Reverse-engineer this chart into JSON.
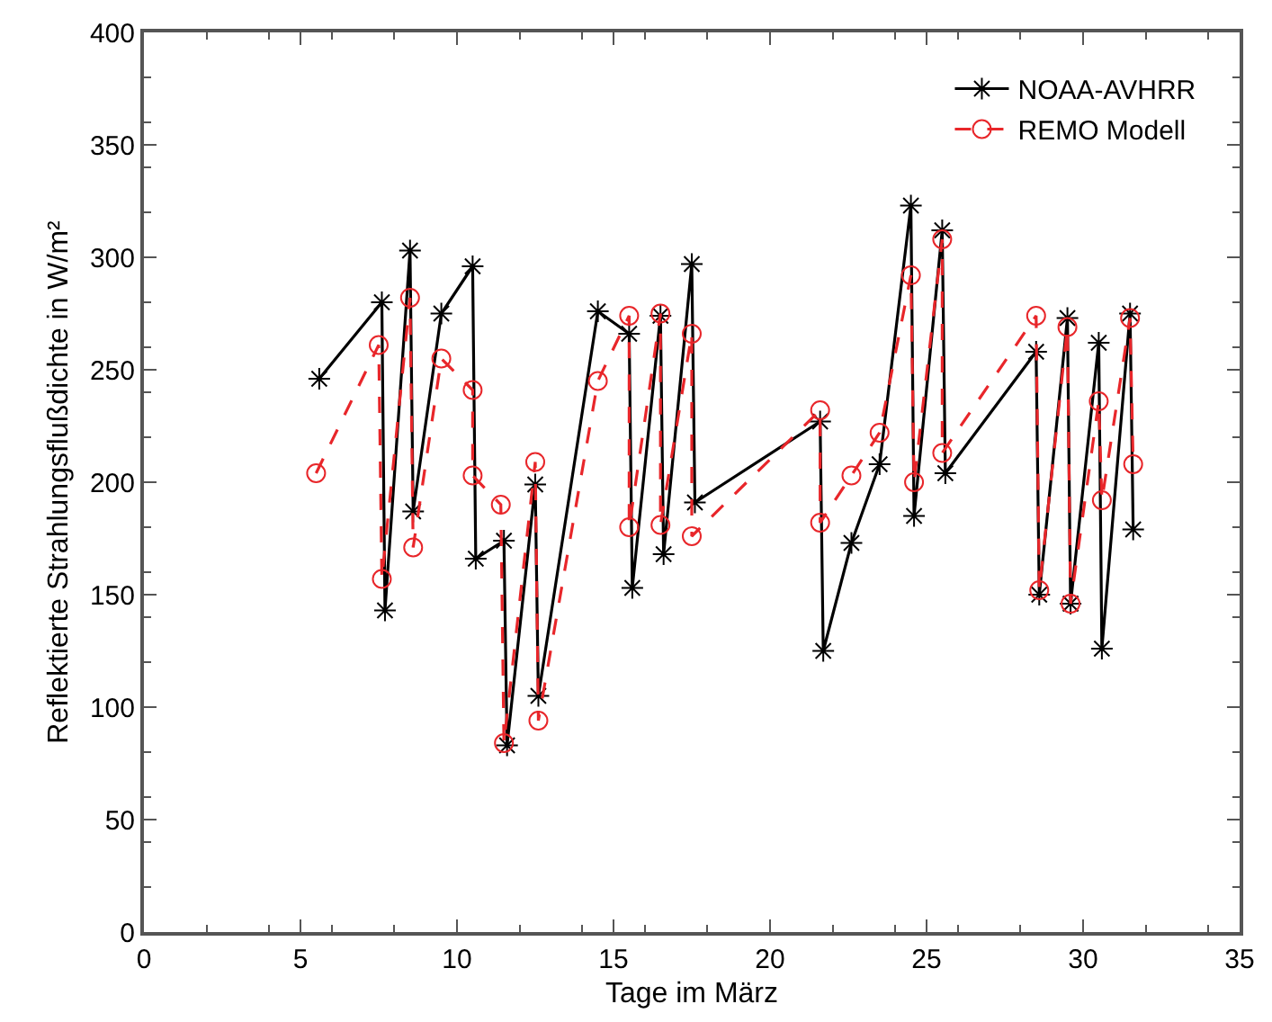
{
  "chart_data": {
    "type": "line",
    "xlabel": "Tage im März",
    "ylabel": "Reflektierte Strahlungsflußdichte in W/m²",
    "xlim": [
      0,
      35
    ],
    "xticks": [
      0,
      5,
      10,
      15,
      20,
      25,
      30,
      35
    ],
    "ylim": [
      0,
      400
    ],
    "yticks": [
      0,
      50,
      100,
      150,
      200,
      250,
      300,
      350,
      400
    ],
    "legend": "top right",
    "series": [
      {
        "name": "NOAA-AVHRR",
        "color": "#000000",
        "marker": "cross",
        "line_style": "solid",
        "x": [
          5.6,
          7.6,
          7.7,
          8.5,
          8.6,
          9.5,
          10.5,
          10.6,
          11.5,
          11.6,
          12.5,
          12.6,
          14.5,
          15.5,
          15.6,
          16.5,
          16.6,
          17.5,
          17.6,
          21.6,
          21.7,
          22.6,
          23.5,
          24.5,
          24.6,
          25.5,
          25.6,
          28.5,
          28.6,
          29.5,
          29.6,
          30.5,
          30.6,
          31.5,
          31.6
        ],
        "values": [
          246,
          280,
          143,
          303,
          187,
          275,
          296,
          166,
          174,
          83,
          199,
          105,
          276,
          266,
          153,
          274,
          168,
          297,
          191,
          227,
          125,
          173,
          208,
          323,
          185,
          312,
          204,
          258,
          150,
          273,
          146,
          262,
          126,
          275,
          179
        ]
      },
      {
        "name": "REMO Modell",
        "color": "#e8262a",
        "marker": "circle",
        "line_style": "dashed",
        "x": [
          5.5,
          7.5,
          7.6,
          8.5,
          8.6,
          9.5,
          10.5,
          10.5,
          11.4,
          11.5,
          12.5,
          12.6,
          14.5,
          15.5,
          15.5,
          16.5,
          16.5,
          17.5,
          17.5,
          21.6,
          21.6,
          22.6,
          23.5,
          24.5,
          24.6,
          25.5,
          25.5,
          28.5,
          28.6,
          29.5,
          29.6,
          30.5,
          30.6,
          31.5,
          31.6
        ],
        "values": [
          204,
          261,
          157,
          282,
          171,
          255,
          241,
          203,
          190,
          84,
          209,
          94,
          245,
          274,
          180,
          275,
          181,
          266,
          176,
          232,
          182,
          203,
          222,
          292,
          200,
          308,
          213,
          274,
          152,
          269,
          146,
          236,
          192,
          273,
          208
        ]
      }
    ]
  }
}
